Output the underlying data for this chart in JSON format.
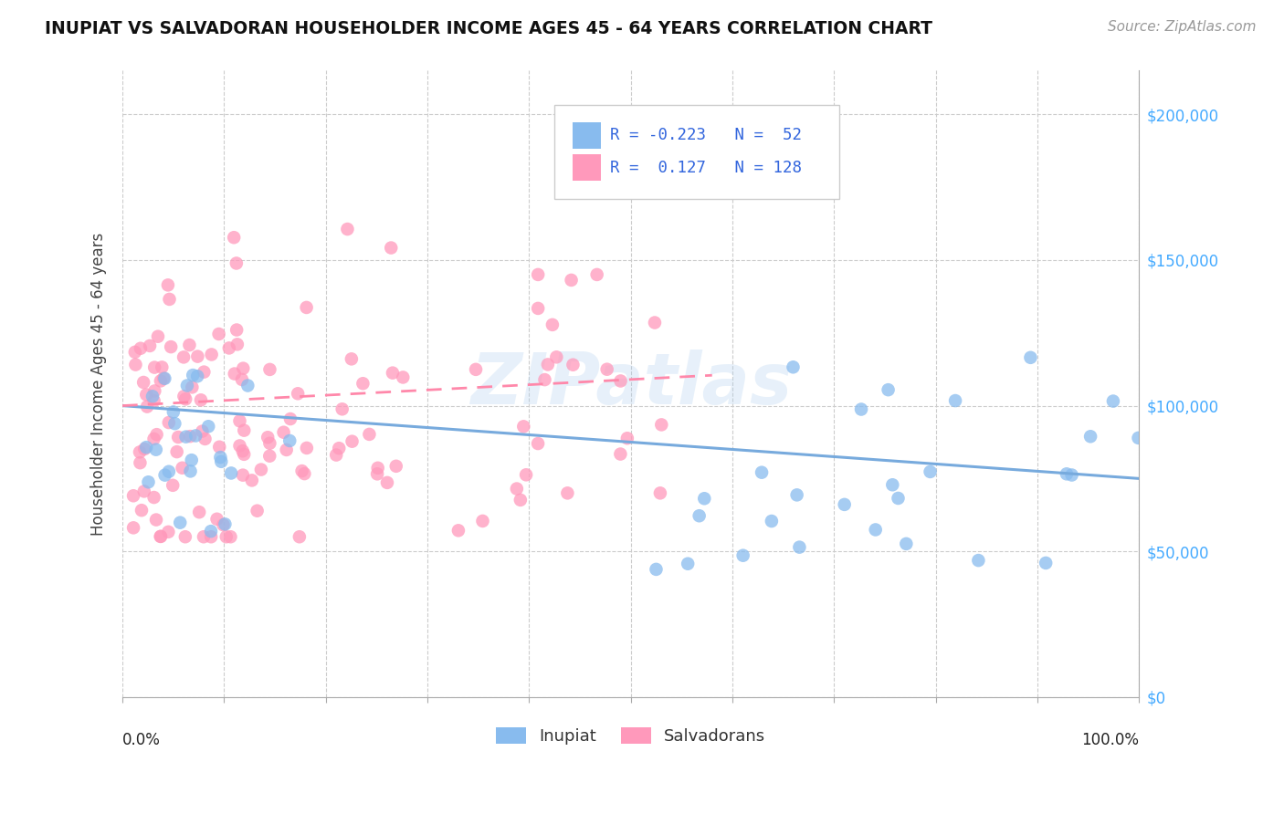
{
  "title": "INUPIAT VS SALVADORAN HOUSEHOLDER INCOME AGES 45 - 64 YEARS CORRELATION CHART",
  "source": "Source: ZipAtlas.com",
  "ylabel": "Householder Income Ages 45 - 64 years",
  "legend_label_1": "Inupiat",
  "legend_label_2": "Salvadorans",
  "color_blue": "#88BBEE",
  "color_pink": "#FF99BB",
  "color_blue_line": "#88BBEE",
  "color_pink_line": "#FF99BB",
  "ytick_values": [
    0,
    50000,
    100000,
    150000,
    200000
  ],
  "ytick_labels": [
    "$0",
    "$50,000",
    "$100,000",
    "$150,000",
    "$200,000"
  ],
  "ylim": [
    0,
    215000
  ],
  "xlim": [
    0,
    1
  ],
  "watermark": "ZIPatlas",
  "r_inupiat": -0.223,
  "n_inupiat": 52,
  "r_salvadoran": 0.127,
  "n_salvadoran": 128
}
